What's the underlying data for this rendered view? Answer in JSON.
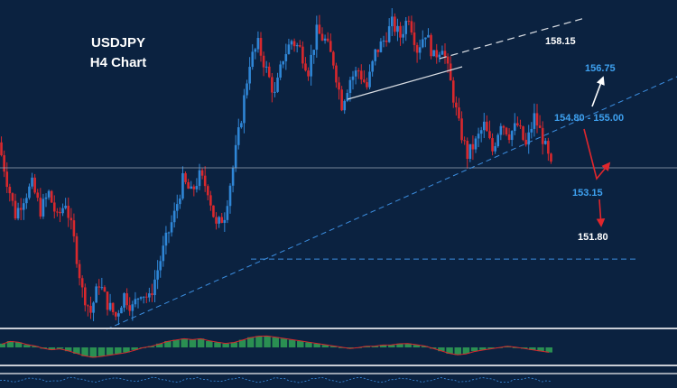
{
  "chart_data": {
    "type": "candlestick",
    "symbol": "USDJPY",
    "timeframe_label": "H4 Chart",
    "colors": {
      "background": "#0b2240",
      "bull": "#2f86d6",
      "bear": "#d8282d",
      "support_line": "#3c8ee0",
      "white_line": "#d9dde3",
      "label_white": "#ffffff",
      "label_blue": "#3ea1f0",
      "arrow_up": "#ffffff",
      "arrow_down": "#e0262c",
      "macd_hist": "#2e9b54",
      "macd_signal": "#d8282d"
    },
    "price_range": [
      151.6,
      159.0
    ],
    "prices": [
      155.9,
      155.0,
      154.2,
      154.6,
      154.9,
      154.3,
      154.7,
      154.1,
      154.5,
      153.6,
      152.4,
      151.9,
      152.6,
      152.1,
      151.8,
      152.3,
      152.0,
      152.4,
      152.2,
      152.9,
      153.6,
      154.2,
      155.0,
      154.7,
      155.1,
      154.8,
      153.9,
      154.2,
      155.3,
      156.5,
      157.8,
      158.2,
      157.6,
      157.0,
      157.9,
      158.3,
      158.1,
      157.6,
      158.5,
      158.3,
      157.8,
      156.8,
      157.4,
      157.6,
      157.2,
      158.0,
      158.3,
      158.7,
      158.4,
      158.9,
      158.1,
      158.5,
      157.9,
      158.2,
      157.3,
      156.3,
      155.6,
      155.9,
      156.3,
      155.7,
      156.4,
      156.1,
      156.3,
      155.8,
      156.5,
      156.0,
      155.3
    ],
    "levels": [
      {
        "label": "158.15",
        "price": 158.15,
        "color": "white"
      },
      {
        "label": "156.75",
        "price": 156.75,
        "color": "blue"
      },
      {
        "label": "154.80 - 155.00",
        "price": 154.9,
        "color": "blue"
      },
      {
        "label": "153.15",
        "price": 153.15,
        "color": "blue"
      },
      {
        "label": "151.80",
        "price": 151.8,
        "color": "white"
      }
    ],
    "indicator": {
      "name": "MACD",
      "histogram": [
        0.3,
        0.5,
        0.4,
        0.2,
        0.1,
        -0.1,
        -0.2,
        -0.1,
        -0.3,
        -0.5,
        -0.7,
        -0.8,
        -0.7,
        -0.6,
        -0.5,
        -0.4,
        -0.2,
        0.0,
        0.1,
        0.3,
        0.5,
        0.6,
        0.7,
        0.6,
        0.7,
        0.5,
        0.4,
        0.3,
        0.4,
        0.6,
        0.8,
        0.9,
        0.9,
        0.8,
        0.7,
        0.6,
        0.5,
        0.4,
        0.3,
        0.2,
        0.1,
        0.0,
        -0.1,
        0.0,
        0.1,
        0.1,
        0.2,
        0.2,
        0.3,
        0.3,
        0.2,
        0.1,
        -0.1,
        -0.3,
        -0.5,
        -0.6,
        -0.5,
        -0.3,
        -0.2,
        -0.1,
        0.0,
        0.1,
        0.0,
        -0.1,
        -0.2,
        -0.3,
        -0.4
      ]
    }
  }
}
